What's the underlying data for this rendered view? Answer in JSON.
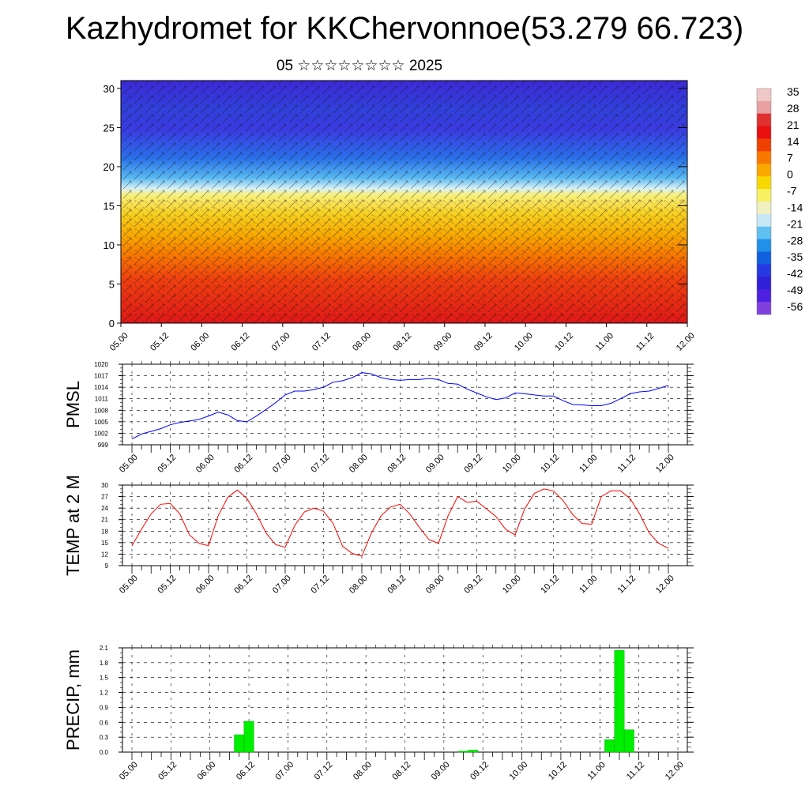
{
  "header": {
    "title": "Kazhydromet for KKChervonnoe(53.279 66.723)",
    "subtitle": "05 ☆☆☆☆☆☆☆☆ 2025"
  },
  "x_ticks": [
    "05.00",
    "05.12",
    "06.00",
    "06.12",
    "07.00",
    "07.12",
    "08.00",
    "08.12",
    "09.00",
    "09.12",
    "10.00",
    "10.12",
    "11.00",
    "11.12",
    "12.00"
  ],
  "colorbar": {
    "labels": [
      "35",
      "28",
      "21",
      "14",
      "7",
      "0",
      "-7",
      "-14",
      "-21",
      "-28",
      "-35",
      "-42",
      "-49",
      "-56"
    ],
    "colors": [
      "#f0c8c8",
      "#e8a0a0",
      "#e03030",
      "#e81010",
      "#f04000",
      "#f87800",
      "#f8a800",
      "#f8d800",
      "#f8f060",
      "#f0f0c0",
      "#c8e8f8",
      "#60c0f0",
      "#2090e8",
      "#1060e0",
      "#2838e0",
      "#3020d8",
      "#5020e0",
      "#8040e0"
    ]
  },
  "chart_data": [
    {
      "type": "heatmap",
      "title": "",
      "xlabel": "",
      "ylabel": "",
      "ylim": [
        0,
        31
      ],
      "yticks": [
        0,
        5,
        10,
        15,
        20,
        25,
        30
      ],
      "note_colors": "temperature field with wind barbs"
    },
    {
      "type": "line",
      "ylabel": "PMSL",
      "ylim": [
        999,
        1020
      ],
      "yticks": [
        999,
        1002,
        1005,
        1008,
        1011,
        1014,
        1017,
        1020
      ],
      "color": "#0000ff",
      "x": [
        0,
        1,
        2,
        3,
        4,
        5,
        6,
        7,
        8,
        9,
        10,
        11,
        12,
        13,
        14,
        15,
        16,
        17,
        18,
        19,
        20,
        21,
        22,
        23,
        24,
        25,
        26,
        27,
        28,
        29,
        30,
        31,
        32,
        33,
        34,
        35,
        36,
        37,
        38,
        39,
        40,
        41,
        42,
        43,
        44,
        45,
        46,
        47,
        48,
        49,
        50,
        51,
        52,
        53,
        54,
        55,
        56
      ],
      "values": [
        1000.5,
        1001.8,
        1002.5,
        1003.2,
        1004.2,
        1004.8,
        1005.2,
        1005.6,
        1006.5,
        1007.5,
        1006.8,
        1005.3,
        1005.0,
        1006.5,
        1008.2,
        1010.0,
        1012.0,
        1013.0,
        1013.0,
        1013.4,
        1014.0,
        1015.3,
        1015.7,
        1016.5,
        1017.8,
        1017.5,
        1016.5,
        1016.0,
        1015.8,
        1016.0,
        1016.0,
        1016.3,
        1016.0,
        1015.0,
        1014.8,
        1013.5,
        1012.5,
        1011.5,
        1010.8,
        1011.2,
        1012.5,
        1012.3,
        1012.0,
        1011.7,
        1011.7,
        1010.5,
        1009.5,
        1009.4,
        1009.2,
        1009.2,
        1009.8,
        1011.0,
        1012.3,
        1012.8,
        1013.0,
        1013.7,
        1014.5
      ]
    },
    {
      "type": "line",
      "ylabel": "TEMP at 2 M",
      "ylim": [
        9,
        30
      ],
      "yticks": [
        9,
        12,
        15,
        18,
        21,
        24,
        27,
        30
      ],
      "color": "#ff0000",
      "x": [
        0,
        1,
        2,
        3,
        4,
        5,
        6,
        7,
        8,
        9,
        10,
        11,
        12,
        13,
        14,
        15,
        16,
        17,
        18,
        19,
        20,
        21,
        22,
        23,
        24,
        25,
        26,
        27,
        28,
        29,
        30,
        31,
        32,
        33,
        34,
        35,
        36,
        37,
        38,
        39,
        40,
        41,
        42,
        43,
        44,
        45,
        46,
        47,
        48,
        49,
        50,
        51,
        52,
        53,
        54,
        55,
        56
      ],
      "values": [
        14.2,
        18.5,
        22.5,
        25.0,
        25.2,
        22.5,
        17.0,
        14.8,
        14.2,
        22.0,
        26.8,
        28.7,
        26.5,
        22.5,
        17.5,
        14.5,
        13.8,
        19.5,
        23.0,
        24.0,
        23.2,
        20.0,
        14.0,
        12.2,
        11.5,
        17.5,
        22.0,
        24.3,
        25.0,
        22.5,
        19.0,
        15.8,
        14.8,
        22.0,
        27.0,
        25.5,
        25.8,
        23.8,
        21.8,
        18.5,
        17.0,
        23.8,
        27.8,
        29.0,
        28.5,
        26.0,
        22.3,
        20.0,
        19.8,
        27.0,
        28.5,
        28.5,
        26.5,
        22.5,
        17.5,
        14.8,
        13.5
      ]
    },
    {
      "type": "bar",
      "ylabel": "PRECIP, mm",
      "ylim": [
        0,
        2.1
      ],
      "yticks": [
        "0.0",
        "0.3",
        "0.6",
        "0.9",
        "1.2",
        "1.5",
        "1.8",
        "2.1"
      ],
      "color": "#00ee00",
      "x": [
        0,
        1,
        2,
        3,
        4,
        5,
        6,
        7,
        8,
        9,
        10,
        11,
        12,
        13,
        14,
        15,
        16,
        17,
        18,
        19,
        20,
        21,
        22,
        23,
        24,
        25,
        26,
        27,
        28,
        29,
        30,
        31,
        32,
        33,
        34,
        35,
        36,
        37,
        38,
        39,
        40,
        41,
        42,
        43,
        44,
        45,
        46,
        47,
        48,
        49,
        50,
        51,
        52,
        53,
        54,
        55,
        56
      ],
      "values": [
        0,
        0,
        0,
        0,
        0,
        0,
        0,
        0,
        0,
        0,
        0,
        0.35,
        0.62,
        0,
        0,
        0,
        0,
        0,
        0,
        0,
        0,
        0,
        0,
        0,
        0,
        0,
        0,
        0,
        0,
        0,
        0,
        0,
        0,
        0,
        0.02,
        0.04,
        0,
        0,
        0,
        0,
        0,
        0,
        0,
        0,
        0,
        0,
        0,
        0,
        0,
        0.25,
        2.05,
        0.45,
        0,
        0,
        0,
        0,
        0
      ]
    }
  ]
}
